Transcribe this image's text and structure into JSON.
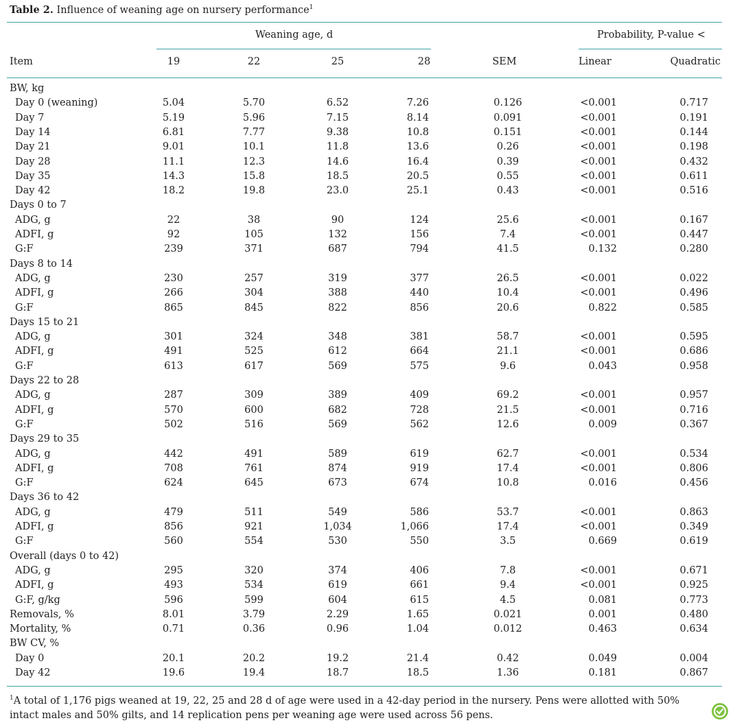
{
  "caption": {
    "label": "Table 2.",
    "text": "Influence of weaning age on nursery performance",
    "note_mark": "1"
  },
  "header": {
    "group_weaning": "Weaning age, d",
    "group_prob": "Probability, P-value <",
    "item": "Item",
    "ages": [
      "19",
      "22",
      "25",
      "28"
    ],
    "sem": "SEM",
    "linear": "Linear",
    "quadratic": "Quadratic"
  },
  "rows": [
    {
      "label": "BW, kg",
      "section": true
    },
    {
      "label": "Day 0 (weaning)",
      "v": [
        "5.04",
        "5.70",
        "6.52",
        "7.26",
        "0.126",
        "<0.001",
        "0.717"
      ]
    },
    {
      "label": "Day 7",
      "v": [
        "5.19",
        "5.96",
        "7.15",
        "8.14",
        "0.091",
        "<0.001",
        "0.191"
      ]
    },
    {
      "label": "Day 14",
      "v": [
        "6.81",
        "7.77",
        "9.38",
        "10.8",
        "0.151",
        "<0.001",
        "0.144"
      ]
    },
    {
      "label": "Day 21",
      "v": [
        "9.01",
        "10.1",
        "11.8",
        "13.6",
        "0.26",
        "<0.001",
        "0.198"
      ]
    },
    {
      "label": "Day 28",
      "v": [
        "11.1",
        "12.3",
        "14.6",
        "16.4",
        "0.39",
        "<0.001",
        "0.432"
      ]
    },
    {
      "label": "Day 35",
      "v": [
        "14.3",
        "15.8",
        "18.5",
        "20.5",
        "0.55",
        "<0.001",
        "0.611"
      ]
    },
    {
      "label": "Day 42",
      "v": [
        "18.2",
        "19.8",
        "23.0",
        "25.1",
        "0.43",
        "<0.001",
        "0.516"
      ]
    },
    {
      "label": "Days 0 to 7",
      "section": true
    },
    {
      "label": "ADG, g",
      "v": [
        "22",
        "38",
        "90",
        "124",
        "25.6",
        "<0.001",
        "0.167"
      ]
    },
    {
      "label": "ADFI, g",
      "v": [
        "92",
        "105",
        "132",
        "156",
        "7.4",
        "<0.001",
        "0.447"
      ]
    },
    {
      "label": "G:F",
      "v": [
        "239",
        "371",
        "687",
        "794",
        "41.5",
        "0.132",
        "0.280"
      ]
    },
    {
      "label": "Days 8 to 14",
      "section": true
    },
    {
      "label": "ADG, g",
      "v": [
        "230",
        "257",
        "319",
        "377",
        "26.5",
        "<0.001",
        "0.022"
      ]
    },
    {
      "label": "ADFI, g",
      "v": [
        "266",
        "304",
        "388",
        "440",
        "10.4",
        "<0.001",
        "0.496"
      ]
    },
    {
      "label": "G:F",
      "v": [
        "865",
        "845",
        "822",
        "856",
        "20.6",
        "0.822",
        "0.585"
      ]
    },
    {
      "label": "Days 15 to 21",
      "section": true
    },
    {
      "label": "ADG, g",
      "v": [
        "301",
        "324",
        "348",
        "381",
        "58.7",
        "<0.001",
        "0.595"
      ]
    },
    {
      "label": "ADFI, g",
      "v": [
        "491",
        "525",
        "612",
        "664",
        "21.1",
        "<0.001",
        "0.686"
      ]
    },
    {
      "label": "G:F",
      "v": [
        "613",
        "617",
        "569",
        "575",
        "9.6",
        "0.043",
        "0.958"
      ]
    },
    {
      "label": "Days 22 to 28",
      "section": true
    },
    {
      "label": "ADG, g",
      "v": [
        "287",
        "309",
        "389",
        "409",
        "69.2",
        "<0.001",
        "0.957"
      ]
    },
    {
      "label": "ADFI, g",
      "v": [
        "570",
        "600",
        "682",
        "728",
        "21.5",
        "<0.001",
        "0.716"
      ]
    },
    {
      "label": "G:F",
      "v": [
        "502",
        "516",
        "569",
        "562",
        "12.6",
        "0.009",
        "0.367"
      ]
    },
    {
      "label": "Days 29 to 35",
      "section": true
    },
    {
      "label": "ADG, g",
      "v": [
        "442",
        "491",
        "589",
        "619",
        "62.7",
        "<0.001",
        "0.534"
      ]
    },
    {
      "label": "ADFI, g",
      "v": [
        "708",
        "761",
        "874",
        "919",
        "17.4",
        "<0.001",
        "0.806"
      ]
    },
    {
      "label": "G:F",
      "v": [
        "624",
        "645",
        "673",
        "674",
        "10.8",
        "0.016",
        "0.456"
      ]
    },
    {
      "label": "Days 36 to 42",
      "section": true
    },
    {
      "label": "ADG, g",
      "v": [
        "479",
        "511",
        "549",
        "586",
        "53.7",
        "<0.001",
        "0.863"
      ]
    },
    {
      "label": "ADFI, g",
      "v": [
        "856",
        "921",
        "1,034",
        "1,066",
        "17.4",
        "<0.001",
        "0.349"
      ]
    },
    {
      "label": "G:F",
      "v": [
        "560",
        "554",
        "530",
        "550",
        "3.5",
        "0.669",
        "0.619"
      ]
    },
    {
      "label": "Overall (days 0 to 42)",
      "section": true
    },
    {
      "label": "ADG, g",
      "v": [
        "295",
        "320",
        "374",
        "406",
        "7.8",
        "<0.001",
        "0.671"
      ]
    },
    {
      "label": "ADFI, g",
      "v": [
        "493",
        "534",
        "619",
        "661",
        "9.4",
        "<0.001",
        "0.925"
      ]
    },
    {
      "label": "G:F, g/kg",
      "v": [
        "596",
        "599",
        "604",
        "615",
        "4.5",
        "0.081",
        "0.773"
      ]
    },
    {
      "label": "Removals, %",
      "top": true,
      "v": [
        "8.01",
        "3.79",
        "2.29",
        "1.65",
        "0.021",
        "0.001",
        "0.480"
      ]
    },
    {
      "label": "Mortality, %",
      "top": true,
      "v": [
        "0.71",
        "0.36",
        "0.96",
        "1.04",
        "0.012",
        "0.463",
        "0.634"
      ]
    },
    {
      "label": "BW CV, %",
      "section": true
    },
    {
      "label": "Day 0",
      "v": [
        "20.1",
        "20.2",
        "19.2",
        "21.4",
        "0.42",
        "0.049",
        "0.004"
      ]
    },
    {
      "label": "Day 42",
      "v": [
        "19.6",
        "19.4",
        "18.7",
        "18.5",
        "1.36",
        "0.181",
        "0.867"
      ]
    }
  ],
  "footnote": {
    "mark": "1",
    "text": "A total of 1,176 pigs weaned at 19, 22, 25 and 28 d of age were used in a 42-day period in the nursery. Pens were allotted with 50% intact males and 50% gilts, and 14 replication pens per weaning age were used across 56 pens."
  },
  "logo_icon": "open-access-icon",
  "colors": {
    "rule": "#3ba0a9",
    "logo": "#7fc241"
  }
}
